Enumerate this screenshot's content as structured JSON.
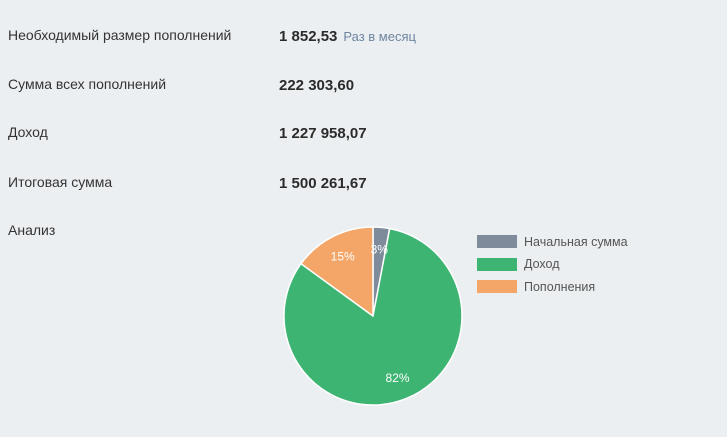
{
  "rows": [
    {
      "label": "Необходимый размер пополнений",
      "value": "1 852,53",
      "unit": "Раз в месяц"
    },
    {
      "label": "Сумма всех пополнений",
      "value": "222 303,60"
    },
    {
      "label": "Доход",
      "value": "1 227 958,07"
    },
    {
      "label": "Итоговая сумма",
      "value": "1 500 261,67"
    }
  ],
  "analysis_label": "Анализ",
  "chart_data": {
    "type": "pie",
    "start_angle_deg": 0,
    "direction": "clockwise",
    "legend_position": "right",
    "slices": [
      {
        "name": "Начальная сумма",
        "value": 3,
        "label": "3%",
        "color": "#7d8b9a"
      },
      {
        "name": "Доход",
        "value": 82,
        "label": "82%",
        "color": "#3db472"
      },
      {
        "name": "Пополнения",
        "value": 15,
        "label": "15%",
        "color": "#f4a669"
      }
    ]
  }
}
